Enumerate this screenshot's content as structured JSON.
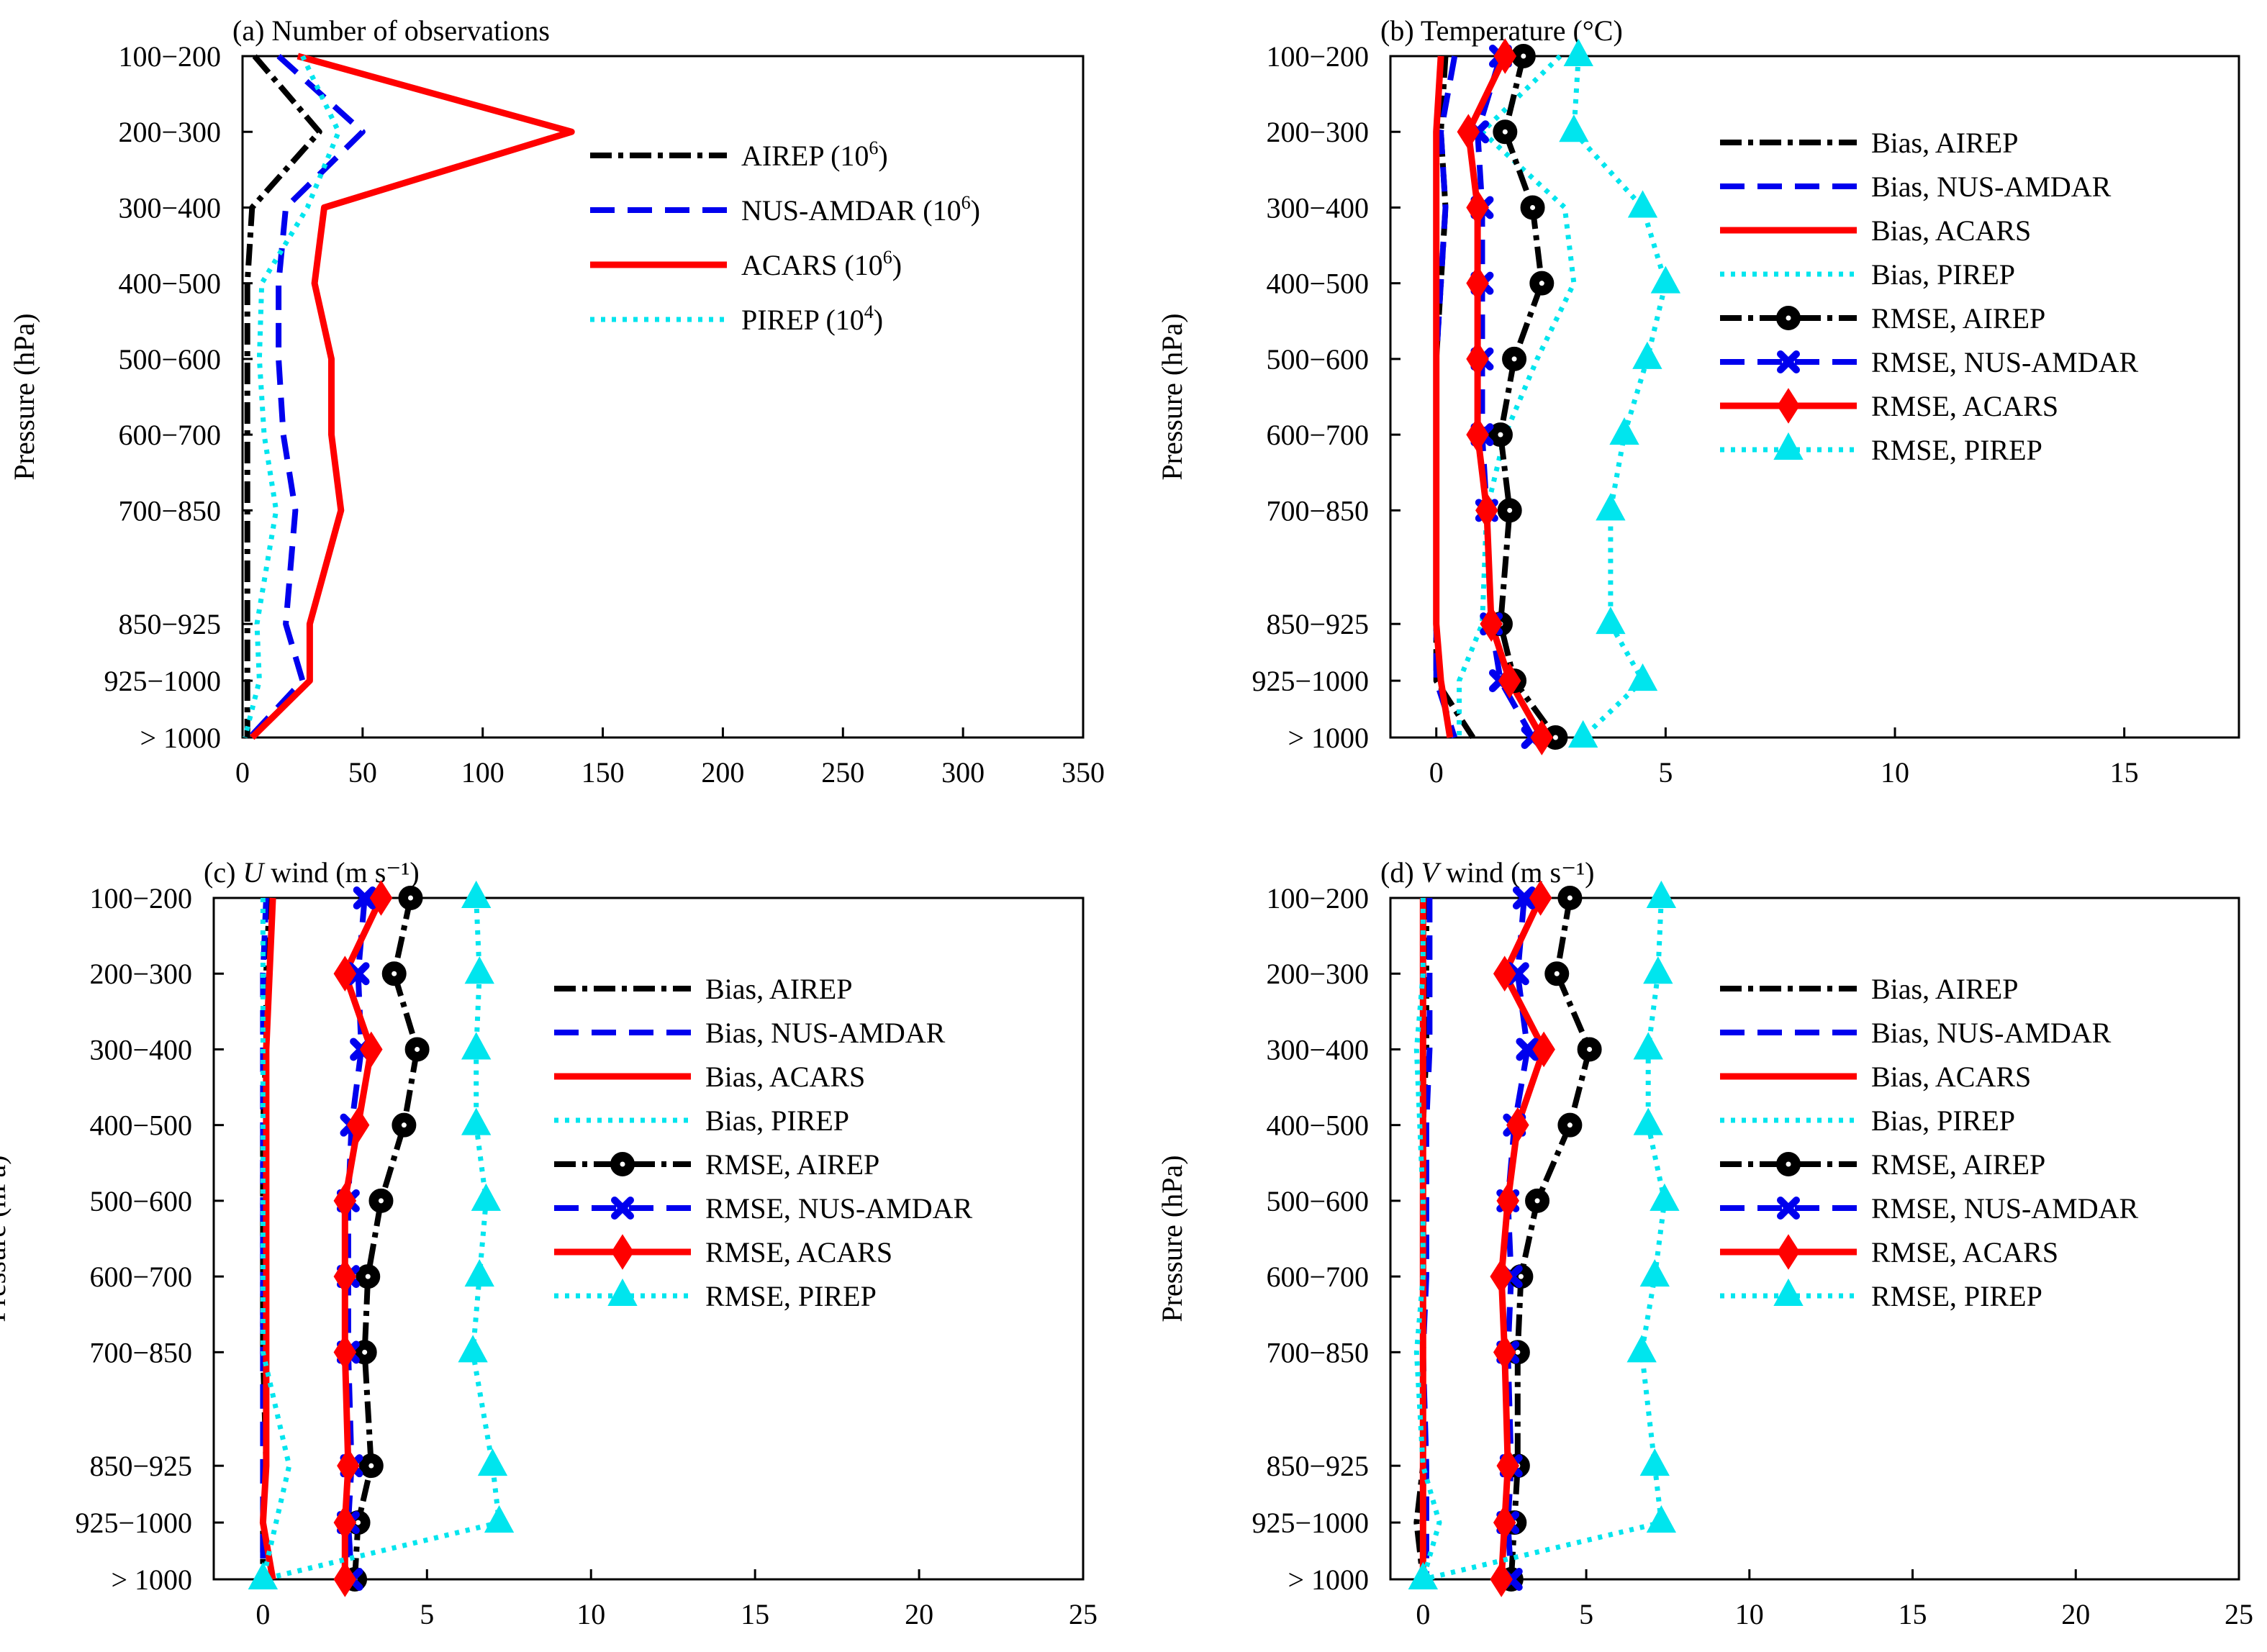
{
  "y_categories": [
    "100−200",
    "200−300",
    "300−400",
    "400−500",
    "500−600",
    "600−700",
    "700−850",
    "850−925",
    "925−1000",
    "> 1000"
  ],
  "y_levels_hpa": [
    150,
    250,
    350,
    450,
    550,
    650,
    750,
    900,
    975,
    1050
  ],
  "colors": {
    "airep": "#000000",
    "nus_amdar": "#0000ee",
    "acars": "#ff0000",
    "pirep": "#00e5ee"
  },
  "chart_data": [
    {
      "id": "a",
      "type": "line",
      "title_prefix": "(a) ",
      "title_italic": "",
      "title_rest": "Number of observations",
      "ylabel": "Pressure (hPa)",
      "xlim": [
        0,
        350
      ],
      "xticks": [
        "0",
        "50",
        "100",
        "150",
        "200",
        "250",
        "300",
        "350"
      ],
      "legend": [
        {
          "label": "AIREP (10",
          "sup": "6",
          "after": ")",
          "style": "airep"
        },
        {
          "label": "NUS-AMDAR (10",
          "sup": "6",
          "after": ")",
          "style": "nus_amdar"
        },
        {
          "label": "ACARS (10",
          "sup": "6",
          "after": ")",
          "style": "acars"
        },
        {
          "label": "PIREP (10",
          "sup": "4",
          "after": ")",
          "style": "pirep"
        }
      ],
      "series": [
        {
          "style": "airep",
          "marker": "none",
          "values": [
            5,
            32,
            4,
            2,
            2,
            2,
            2,
            2,
            2,
            2
          ]
        },
        {
          "style": "nus_amdar",
          "marker": "none",
          "values": [
            15,
            50,
            18,
            15,
            15,
            17,
            22,
            18,
            25,
            3
          ]
        },
        {
          "style": "acars",
          "marker": "none",
          "values": [
            23,
            137,
            34,
            30,
            37,
            37,
            41,
            28,
            28,
            4
          ]
        },
        {
          "style": "pirep",
          "marker": "none",
          "values": [
            25,
            40,
            27,
            8,
            7,
            9,
            14,
            6,
            7,
            1
          ]
        }
      ]
    },
    {
      "id": "b",
      "type": "line",
      "title_prefix": "(b) ",
      "title_italic": "",
      "title_rest": "Temperature (°C)",
      "ylabel": "Pressure (hPa)",
      "xlim": [
        -1,
        17.5
      ],
      "xticks": [
        "0",
        "5",
        "10",
        "15"
      ],
      "xtick_values": [
        0,
        5,
        10,
        15
      ],
      "legend": [
        {
          "label": "Bias, AIREP",
          "style": "airep",
          "marker": "none"
        },
        {
          "label": "Bias, NUS-AMDAR",
          "style": "nus_amdar",
          "marker": "none"
        },
        {
          "label": "Bias, ACARS",
          "style": "acars",
          "marker": "none"
        },
        {
          "label": "Bias, PIREP",
          "style": "pirep",
          "marker": "none"
        },
        {
          "label": "RMSE, AIREP",
          "style": "airep",
          "marker": "circle"
        },
        {
          "label": "RMSE, NUS-AMDAR",
          "style": "nus_amdar",
          "marker": "x"
        },
        {
          "label": "RMSE, ACARS",
          "style": "acars",
          "marker": "diamond"
        },
        {
          "label": "RMSE, PIREP",
          "style": "pirep",
          "marker": "triangle"
        }
      ],
      "series": [
        {
          "style": "airep",
          "marker": "none",
          "values": [
            0.2,
            0.1,
            0.2,
            0.1,
            0.0,
            0.0,
            0.0,
            0.0,
            0.0,
            0.8
          ]
        },
        {
          "style": "nus_amdar",
          "marker": "none",
          "values": [
            0.4,
            0.1,
            0.2,
            0.1,
            0.0,
            0.0,
            0.0,
            0.0,
            0.0,
            0.4
          ]
        },
        {
          "style": "acars",
          "marker": "none",
          "values": [
            0.1,
            0.0,
            0.0,
            0.0,
            0.0,
            0.0,
            0.0,
            0.0,
            0.1,
            0.3
          ]
        },
        {
          "style": "pirep",
          "marker": "none",
          "values": [
            2.7,
            1.0,
            2.8,
            3.0,
            2.2,
            1.5,
            1.1,
            1.0,
            0.5,
            0.5
          ]
        },
        {
          "style": "airep",
          "marker": "circle",
          "values": [
            1.9,
            1.5,
            2.1,
            2.3,
            1.7,
            1.4,
            1.6,
            1.4,
            1.7,
            2.6
          ]
        },
        {
          "style": "nus_amdar",
          "marker": "x",
          "values": [
            1.4,
            0.9,
            1.0,
            1.0,
            1.0,
            1.0,
            1.1,
            1.2,
            1.4,
            2.1
          ]
        },
        {
          "style": "acars",
          "marker": "diamond",
          "values": [
            1.5,
            0.7,
            0.9,
            0.9,
            0.9,
            0.9,
            1.1,
            1.2,
            1.6,
            2.3
          ]
        },
        {
          "style": "pirep",
          "marker": "triangle",
          "values": [
            3.1,
            3.0,
            4.5,
            5.0,
            4.6,
            4.1,
            3.8,
            3.8,
            4.5,
            3.2
          ]
        }
      ]
    },
    {
      "id": "c",
      "type": "line",
      "title_prefix": "(c) ",
      "title_italic": "U",
      "title_rest": " wind (m s⁻¹)",
      "ylabel": "Pressure (hPa)",
      "xlim": [
        -1.5,
        25
      ],
      "xticks": [
        "0",
        "5",
        "10",
        "15",
        "20",
        "25"
      ],
      "xtick_values": [
        0,
        5,
        10,
        15,
        20,
        25
      ],
      "legend": [
        {
          "label": "Bias, AIREP",
          "style": "airep",
          "marker": "none"
        },
        {
          "label": "Bias, NUS-AMDAR",
          "style": "nus_amdar",
          "marker": "none"
        },
        {
          "label": "Bias, ACARS",
          "style": "acars",
          "marker": "none"
        },
        {
          "label": "Bias, PIREP",
          "style": "pirep",
          "marker": "none"
        },
        {
          "label": "RMSE, AIREP",
          "style": "airep",
          "marker": "circle"
        },
        {
          "label": "RMSE, NUS-AMDAR",
          "style": "nus_amdar",
          "marker": "x"
        },
        {
          "label": "RMSE, ACARS",
          "style": "acars",
          "marker": "diamond"
        },
        {
          "label": "RMSE, PIREP",
          "style": "pirep",
          "marker": "triangle"
        }
      ],
      "series": [
        {
          "style": "airep",
          "marker": "none",
          "values": [
            0.2,
            0.1,
            0.1,
            0.0,
            0.0,
            0.0,
            0.0,
            0.1,
            0.0,
            0.0
          ]
        },
        {
          "style": "nus_amdar",
          "marker": "none",
          "values": [
            0.1,
            0.0,
            0.0,
            0.0,
            0.0,
            0.0,
            0.0,
            0.0,
            0.0,
            0.0
          ]
        },
        {
          "style": "acars",
          "marker": "none",
          "values": [
            0.3,
            0.2,
            0.1,
            0.1,
            0.1,
            0.1,
            0.1,
            0.1,
            0.0,
            0.3
          ]
        },
        {
          "style": "pirep",
          "marker": "none",
          "values": [
            0.0,
            0.0,
            0.0,
            0.0,
            0.0,
            0.0,
            0.0,
            0.8,
            0.4,
            0.0
          ]
        },
        {
          "style": "airep",
          "marker": "circle",
          "values": [
            4.5,
            4.0,
            4.7,
            4.3,
            3.6,
            3.2,
            3.1,
            3.3,
            2.9,
            2.8
          ]
        },
        {
          "style": "nus_amdar",
          "marker": "x",
          "values": [
            3.1,
            2.9,
            3.0,
            2.7,
            2.6,
            2.6,
            2.6,
            2.7,
            2.6,
            2.7
          ]
        },
        {
          "style": "acars",
          "marker": "diamond",
          "values": [
            3.6,
            2.5,
            3.3,
            2.9,
            2.5,
            2.5,
            2.5,
            2.6,
            2.5,
            2.5
          ]
        },
        {
          "style": "pirep",
          "marker": "triangle",
          "values": [
            6.5,
            6.6,
            6.5,
            6.5,
            6.8,
            6.6,
            6.4,
            7.0,
            7.2,
            0.0
          ]
        }
      ]
    },
    {
      "id": "d",
      "type": "line",
      "title_prefix": "(d) ",
      "title_italic": "V",
      "title_rest": " wind (m s⁻¹)",
      "ylabel": "Pressure (hPa)",
      "xlim": [
        -1,
        25
      ],
      "xticks": [
        "0",
        "5",
        "10",
        "15",
        "20",
        "25"
      ],
      "xtick_values": [
        0,
        5,
        10,
        15,
        20,
        25
      ],
      "legend": [
        {
          "label": "Bias, AIREP",
          "style": "airep",
          "marker": "none"
        },
        {
          "label": "Bias, NUS-AMDAR",
          "style": "nus_amdar",
          "marker": "none"
        },
        {
          "label": "Bias, ACARS",
          "style": "acars",
          "marker": "none"
        },
        {
          "label": "Bias, PIREP",
          "style": "pirep",
          "marker": "none"
        },
        {
          "label": "RMSE, AIREP",
          "style": "airep",
          "marker": "circle"
        },
        {
          "label": "RMSE, NUS-AMDAR",
          "style": "nus_amdar",
          "marker": "x"
        },
        {
          "label": "RMSE, ACARS",
          "style": "acars",
          "marker": "diamond"
        },
        {
          "label": "RMSE, PIREP",
          "style": "pirep",
          "marker": "triangle"
        }
      ],
      "series": [
        {
          "style": "airep",
          "marker": "none",
          "values": [
            0.1,
            0.1,
            0.1,
            0.0,
            0.0,
            0.0,
            0.0,
            0.0,
            -0.2,
            0.0
          ]
        },
        {
          "style": "nus_amdar",
          "marker": "none",
          "values": [
            0.2,
            0.2,
            0.2,
            0.1,
            0.1,
            0.1,
            0.0,
            0.1,
            0.1,
            0.1
          ]
        },
        {
          "style": "acars",
          "marker": "none",
          "values": [
            0.0,
            0.0,
            0.0,
            0.0,
            0.0,
            0.0,
            0.0,
            0.0,
            0.0,
            0.0
          ]
        },
        {
          "style": "pirep",
          "marker": "none",
          "values": [
            0.0,
            0.0,
            -0.2,
            -0.1,
            0.0,
            0.0,
            -0.2,
            0.0,
            0.5,
            0.0
          ]
        },
        {
          "style": "airep",
          "marker": "circle",
          "values": [
            4.5,
            4.1,
            5.1,
            4.5,
            3.5,
            3.0,
            2.9,
            2.9,
            2.8,
            2.7
          ]
        },
        {
          "style": "nus_amdar",
          "marker": "x",
          "values": [
            3.1,
            2.9,
            3.2,
            2.8,
            2.6,
            2.7,
            2.6,
            2.7,
            2.6,
            2.7
          ]
        },
        {
          "style": "acars",
          "marker": "diamond",
          "values": [
            3.6,
            2.5,
            3.7,
            2.9,
            2.6,
            2.4,
            2.5,
            2.6,
            2.5,
            2.4
          ]
        },
        {
          "style": "pirep",
          "marker": "triangle",
          "values": [
            7.3,
            7.2,
            6.9,
            6.9,
            7.4,
            7.1,
            6.7,
            7.1,
            7.3,
            0.0
          ]
        }
      ]
    }
  ]
}
